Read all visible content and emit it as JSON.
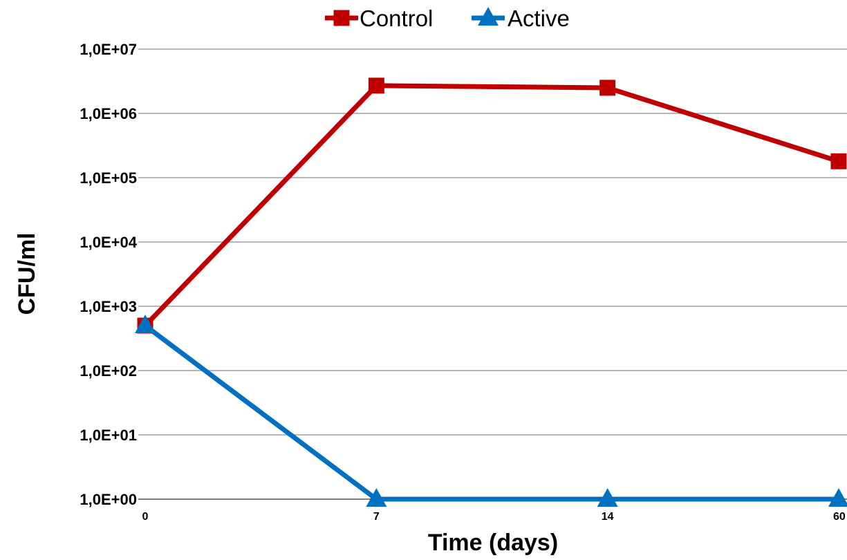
{
  "chart_data": {
    "type": "line",
    "title": "",
    "xlabel": "Time (days)",
    "ylabel": "CFU/ml",
    "y_scale": "log",
    "ylim": [
      1,
      10000000
    ],
    "categories": [
      "0",
      "7",
      "14",
      "60"
    ],
    "yticks": [
      "1,0E+00",
      "1,0E+01",
      "1,0E+02",
      "1,0E+03",
      "1,0E+04",
      "1,0E+05",
      "1,0E+06",
      "1,0E+07"
    ],
    "grid": true,
    "legend_position": "top",
    "series": [
      {
        "name": "Control",
        "color": "#C00000",
        "marker": "square",
        "values": [
          500,
          2700000,
          2500000,
          180000
        ]
      },
      {
        "name": "Active",
        "color": "#0070C0",
        "marker": "triangle",
        "values": [
          500,
          1,
          1,
          1
        ]
      }
    ]
  }
}
